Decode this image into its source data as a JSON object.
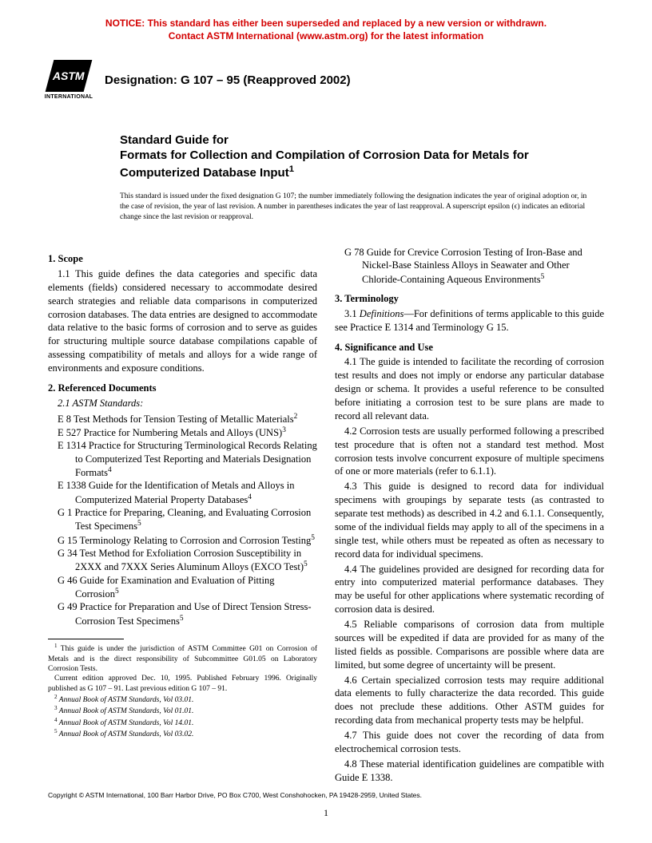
{
  "notice": {
    "line1": "NOTICE: This standard has either been superseded and replaced by a new version or withdrawn.",
    "line2": "Contact ASTM International (www.astm.org) for the latest information"
  },
  "logo": {
    "initials": "ASTM",
    "subtext": "INTERNATIONAL"
  },
  "designation": "Designation: G 107 – 95 (Reapproved 2002)",
  "title": {
    "prefix": "Standard Guide for",
    "main": "Formats for Collection and Compilation of Corrosion Data for Metals for Computerized Database Input",
    "sup": "1"
  },
  "issued_note": "This standard is issued under the fixed designation G 107; the number immediately following the designation indicates the year of original adoption or, in the case of revision, the year of last revision. A number in parentheses indicates the year of last reapproval. A superscript epsilon (ϵ) indicates an editorial change since the last revision or reapproval.",
  "left": {
    "s1_head": "1. Scope",
    "s1_1": "1.1 This guide defines the data categories and specific data elements (fields) considered necessary to accommodate desired search strategies and reliable data comparisons in computerized corrosion databases. The data entries are designed to accommodate data relative to the basic forms of corrosion and to serve as guides for structuring multiple source database compilations capable of assessing compatibility of metals and alloys for a wide range of environments and exposure conditions.",
    "s2_head": "2. Referenced Documents",
    "s2_sub": "2.1 ASTM Standards:",
    "refs": [
      {
        "t": "E 8  Test Methods for Tension Testing of Metallic Materials",
        "s": "2"
      },
      {
        "t": "E 527  Practice for Numbering Metals and Alloys (UNS)",
        "s": "3"
      },
      {
        "t": "E 1314 Practice for Structuring Terminological Records Relating to Computerized Test Reporting and Materials Designation Formats",
        "s": "4"
      },
      {
        "t": "E 1338  Guide for the Identification of Metals and Alloys in Computerized Material Property Databases",
        "s": "4"
      },
      {
        "t": "G 1  Practice for Preparing, Cleaning, and Evaluating Corrosion Test Specimens",
        "s": "5"
      },
      {
        "t": "G 15  Terminology Relating to Corrosion and Corrosion Testing",
        "s": "5"
      },
      {
        "t": "G 34  Test Method for Exfoliation Corrosion Susceptibility in 2XXX and 7XXX Series Aluminum Alloys (EXCO Test)",
        "s": "5"
      },
      {
        "t": "G 46  Guide for Examination and Evaluation of Pitting Corrosion",
        "s": "5"
      },
      {
        "t": "G 49  Practice for Preparation and Use of Direct Tension Stress-Corrosion Test Specimens",
        "s": "5"
      }
    ],
    "footnotes": {
      "f1a": " This guide is under the jurisdiction of ASTM Committee G01 on Corrosion of Metals and is the direct responsibility of Subcommittee G01.05 on Laboratory Corrosion Tests.",
      "f1b": "Current edition approved Dec. 10, 1995. Published February 1996. Originally published as G 107 – 91. Last previous edition G 107 – 91.",
      "f2": " Annual Book of ASTM Standards, Vol 03.01.",
      "f3": " Annual Book of ASTM Standards, Vol 01.01.",
      "f4": " Annual Book of ASTM Standards, Vol 14.01.",
      "f5": " Annual Book of ASTM Standards, Vol 03.02."
    }
  },
  "right": {
    "ref_cont": {
      "t": "G 78  Guide for Crevice Corrosion Testing of Iron-Base and Nickel-Base Stainless Alloys in Seawater and Other Chloride-Containing Aqueous Environments",
      "s": "5"
    },
    "s3_head": "3. Terminology",
    "s3_1a": "3.1 ",
    "s3_1b": "Definitions",
    "s3_1c": "—For definitions of terms applicable to this guide see Practice E 1314 and Terminology G 15.",
    "s4_head": "4. Significance and Use",
    "s4_1": "4.1 The guide is intended to facilitate the recording of corrosion test results and does not imply or endorse any particular database design or schema. It provides a useful reference to be consulted before initiating a corrosion test to be sure plans are made to record all relevant data.",
    "s4_2": "4.2 Corrosion tests are usually performed following a prescribed test procedure that is often not a standard test method. Most corrosion tests involve concurrent exposure of multiple specimens of one or more materials (refer to 6.1.1).",
    "s4_3": "4.3 This guide is designed to record data for individual specimens with groupings by separate tests (as contrasted to separate test methods) as described in 4.2 and 6.1.1. Consequently, some of the individual fields may apply to all of the specimens in a single test, while others must be repeated as often as necessary to record data for individual specimens.",
    "s4_4": "4.4  The guidelines provided are designed for recording data for entry into computerized material performance databases. They may be useful for other applications where systematic recording of corrosion data is desired.",
    "s4_5": "4.5 Reliable comparisons of corrosion data from multiple sources will be expedited if data are provided for as many of the listed fields as possible. Comparisons are possible where data are limited, but some degree of uncertainty will be present.",
    "s4_6": "4.6 Certain specialized corrosion tests may require additional data elements to fully characterize the data recorded. This guide does not preclude these additions. Other ASTM guides for recording data from mechanical property tests may be helpful.",
    "s4_7": "4.7 This guide does not cover the recording of data from electrochemical corrosion tests.",
    "s4_8": "4.8 These material identification guidelines are compatible with Guide E 1338."
  },
  "copyright": "Copyright © ASTM International, 100 Barr Harbor Drive, PO Box C700, West Conshohocken, PA 19428-2959, United States.",
  "pagenum": "1"
}
